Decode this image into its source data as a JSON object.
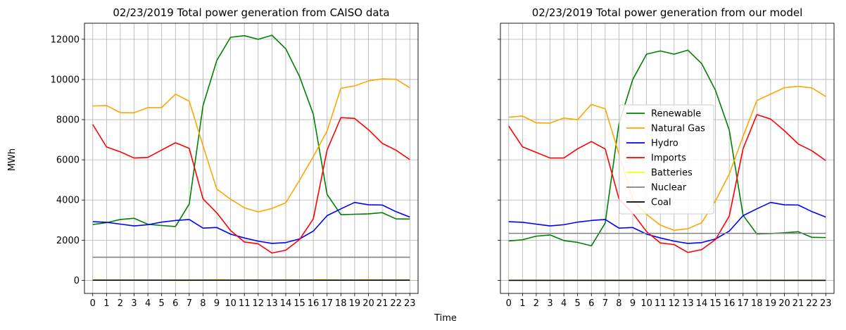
{
  "figure": {
    "xlabel": "Time",
    "ylabel": "MWh"
  },
  "chart_data": [
    {
      "type": "line",
      "title": "02/23/2019 Total power generation from CAISO data",
      "xlabel": "Time",
      "ylabel": "MWh",
      "x": [
        0,
        1,
        2,
        3,
        4,
        5,
        6,
        7,
        8,
        9,
        10,
        11,
        12,
        13,
        14,
        15,
        16,
        17,
        18,
        19,
        20,
        21,
        22,
        23
      ],
      "xlim": [
        -0.6,
        23.6
      ],
      "ylim": [
        -650,
        12800
      ],
      "yticks": [
        0,
        2000,
        4000,
        6000,
        8000,
        10000,
        12000
      ],
      "grid": true,
      "series": [
        {
          "name": "Renewable",
          "color": "#008000",
          "values": [
            2780,
            2870,
            3030,
            3090,
            2790,
            2730,
            2680,
            3800,
            8700,
            10950,
            12100,
            12180,
            12000,
            12200,
            11530,
            10150,
            8270,
            4280,
            3270,
            3290,
            3310,
            3370,
            3060,
            3050
          ]
        },
        {
          "name": "Natural Gas",
          "color": "#ffa500",
          "values": [
            8680,
            8700,
            8350,
            8340,
            8600,
            8600,
            9270,
            8920,
            6700,
            4540,
            4040,
            3610,
            3410,
            3580,
            3860,
            4980,
            6160,
            7440,
            9560,
            9680,
            9930,
            10030,
            10010,
            9590
          ]
        },
        {
          "name": "Hydro",
          "color": "#0000ff",
          "values": [
            2920,
            2890,
            2800,
            2710,
            2770,
            2900,
            2980,
            3030,
            2600,
            2630,
            2300,
            2110,
            1950,
            1840,
            1880,
            2060,
            2450,
            3220,
            3560,
            3880,
            3760,
            3750,
            3420,
            3150
          ]
        },
        {
          "name": "Imports",
          "color": "#ff0000",
          "values": [
            7760,
            6640,
            6400,
            6090,
            6120,
            6490,
            6850,
            6570,
            4060,
            3360,
            2480,
            1910,
            1820,
            1360,
            1500,
            2030,
            3060,
            6490,
            8100,
            8060,
            7500,
            6820,
            6480,
            6010
          ]
        },
        {
          "name": "Batteries",
          "color": "#ffff00",
          "values": [
            30,
            20,
            10,
            10,
            10,
            0,
            -20,
            -30,
            10,
            40,
            20,
            10,
            10,
            10,
            30,
            0,
            20,
            40,
            -10,
            20,
            30,
            20,
            20,
            30
          ]
        },
        {
          "name": "Nuclear",
          "color": "#808080",
          "values": [
            1150,
            1150,
            1150,
            1150,
            1150,
            1150,
            1150,
            1150,
            1150,
            1150,
            1150,
            1150,
            1150,
            1150,
            1150,
            1150,
            1150,
            1150,
            1150,
            1150,
            1150,
            1150,
            1150,
            1150
          ]
        },
        {
          "name": "Coal",
          "color": "#000000",
          "values": [
            10,
            10,
            10,
            10,
            10,
            10,
            10,
            10,
            10,
            10,
            10,
            10,
            10,
            10,
            10,
            10,
            10,
            10,
            10,
            10,
            10,
            10,
            10,
            10
          ]
        }
      ]
    },
    {
      "type": "line",
      "title": "02/23/2019 Total power generation from our model",
      "xlabel": "Time",
      "ylabel": "MWh",
      "x": [
        0,
        1,
        2,
        3,
        4,
        5,
        6,
        7,
        8,
        9,
        10,
        11,
        12,
        13,
        14,
        15,
        16,
        17,
        18,
        19,
        20,
        21,
        22,
        23
      ],
      "xlim": [
        -0.6,
        23.6
      ],
      "ylim": [
        -650,
        12800
      ],
      "yticks": [
        0,
        2000,
        4000,
        6000,
        8000,
        10000,
        12000
      ],
      "grid": true,
      "legend": "center",
      "series": [
        {
          "name": "Renewable",
          "color": "#008000",
          "values": [
            1960,
            2020,
            2200,
            2260,
            1980,
            1890,
            1720,
            2850,
            7800,
            10000,
            11260,
            11420,
            11260,
            11460,
            10790,
            9460,
            7480,
            3240,
            2310,
            2330,
            2370,
            2420,
            2140,
            2130
          ]
        },
        {
          "name": "Natural Gas",
          "color": "#ffa500",
          "values": [
            8120,
            8180,
            7840,
            7830,
            8080,
            8000,
            8760,
            8540,
            6290,
            4040,
            3280,
            2750,
            2490,
            2570,
            2870,
            3960,
            5290,
            7160,
            8950,
            9270,
            9590,
            9660,
            9580,
            9150
          ]
        },
        {
          "name": "Hydro",
          "color": "#0000ff",
          "values": [
            2920,
            2890,
            2800,
            2710,
            2770,
            2900,
            2980,
            3030,
            2600,
            2630,
            2300,
            2110,
            1950,
            1840,
            1880,
            2060,
            2450,
            3220,
            3560,
            3880,
            3760,
            3750,
            3420,
            3150
          ]
        },
        {
          "name": "Imports",
          "color": "#ff0000",
          "values": [
            7680,
            6650,
            6370,
            6090,
            6090,
            6550,
            6910,
            6540,
            4060,
            3340,
            2430,
            1860,
            1780,
            1390,
            1530,
            2030,
            3200,
            6550,
            8250,
            8030,
            7450,
            6790,
            6450,
            5960
          ]
        },
        {
          "name": "Batteries",
          "color": "#ffff00",
          "values": [
            0,
            0,
            0,
            0,
            0,
            0,
            0,
            0,
            0,
            0,
            0,
            0,
            0,
            0,
            0,
            0,
            0,
            0,
            0,
            0,
            0,
            0,
            0,
            0
          ]
        },
        {
          "name": "Nuclear",
          "color": "#808080",
          "values": [
            2340,
            2340,
            2340,
            2340,
            2340,
            2340,
            2340,
            2340,
            2340,
            2340,
            2340,
            2340,
            2340,
            2340,
            2340,
            2340,
            2340,
            2340,
            2340,
            2340,
            2340,
            2340,
            2340,
            2340
          ]
        },
        {
          "name": "Coal",
          "color": "#000000",
          "values": [
            0,
            0,
            0,
            0,
            0,
            0,
            0,
            0,
            0,
            0,
            0,
            0,
            0,
            0,
            0,
            0,
            0,
            0,
            0,
            0,
            0,
            0,
            0,
            0
          ]
        }
      ]
    }
  ]
}
